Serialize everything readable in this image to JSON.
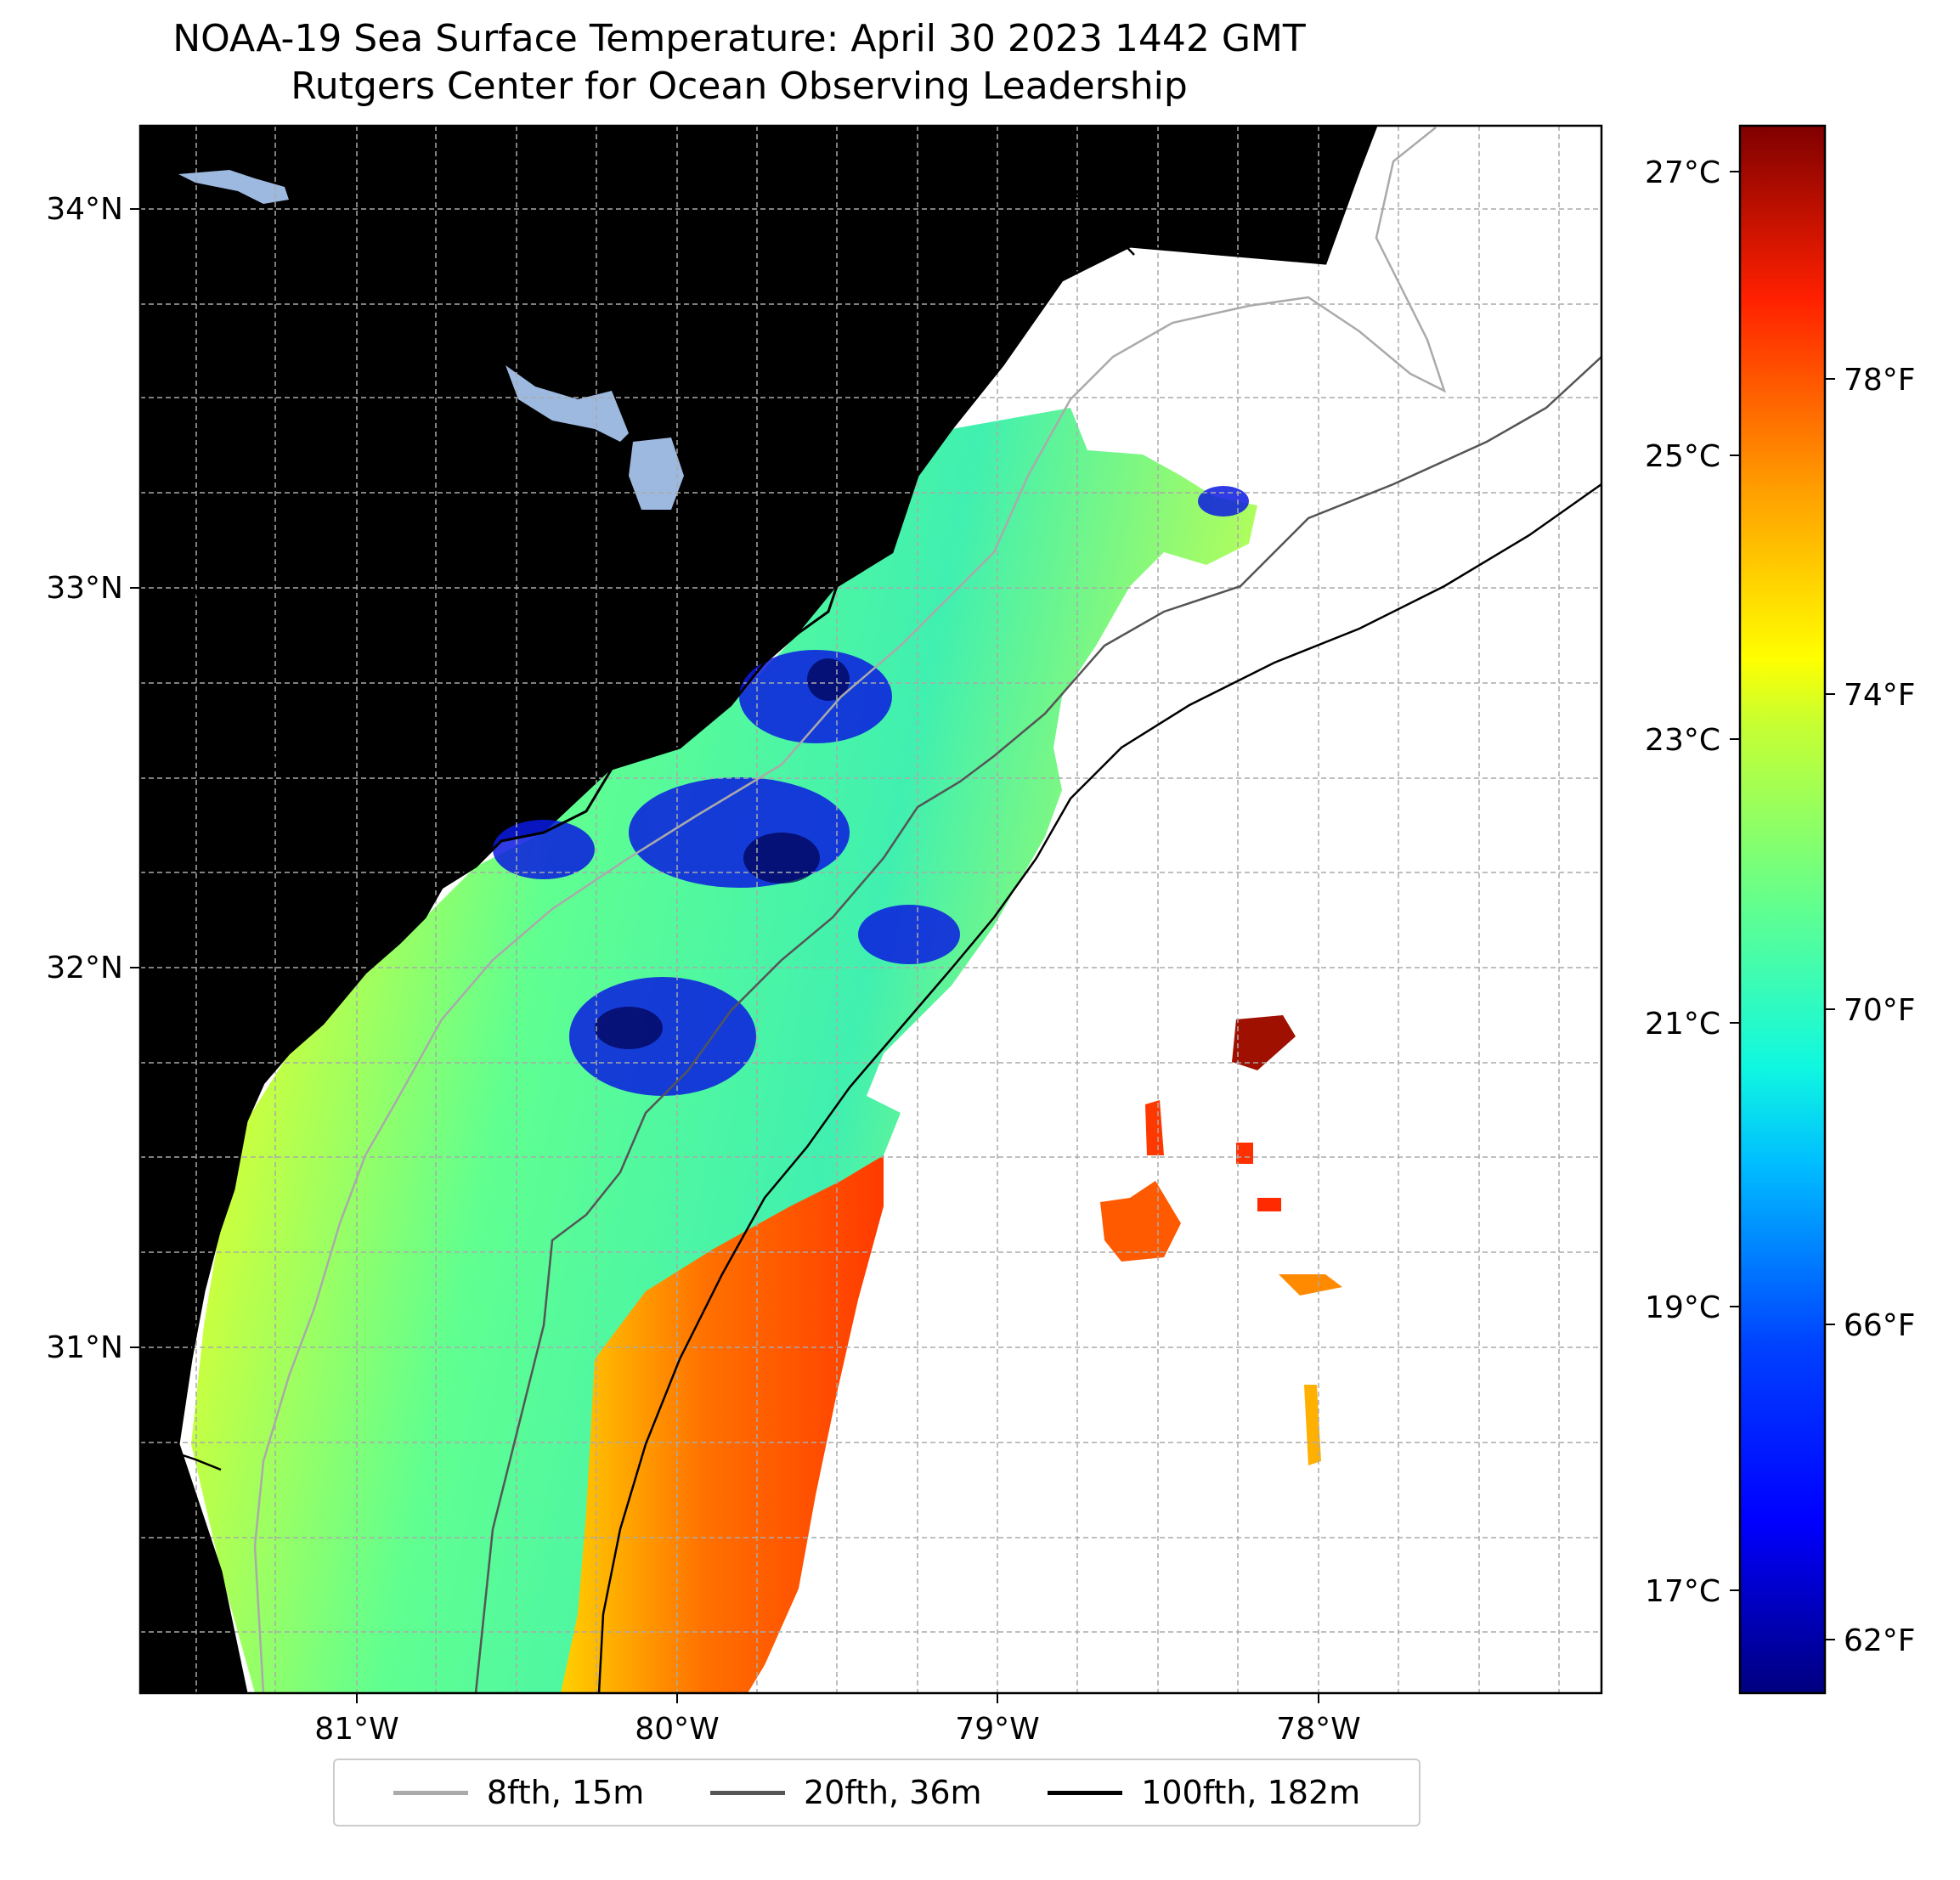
{
  "title": {
    "line1": "NOAA-19 Sea Surface Temperature: April 30 2023 1442 GMT",
    "line2": "Rutgers Center for Ocean Observing Leadership"
  },
  "map": {
    "lat_labels": [
      "34°N",
      "33°N",
      "32°N",
      "31°N"
    ],
    "lon_labels": [
      "81°W",
      "80°W",
      "79°W",
      "78°W"
    ],
    "colors": {
      "land": "#d2b48c",
      "lake": "#9db9e0",
      "grid": "#aaaaaa",
      "coast": "#000000",
      "iso_8fth": "#aaaaaa",
      "iso_20fth": "#555555",
      "iso_100fth": "#000000"
    }
  },
  "colorbar": {
    "celsius_labels": [
      "27°C",
      "25°C",
      "23°C",
      "21°C",
      "19°C",
      "17°C"
    ],
    "fahrenheit_labels": [
      "78°F",
      "74°F",
      "70°F",
      "66°F",
      "62°F"
    ],
    "colormap": "jet"
  },
  "legend": {
    "items": [
      {
        "label": "8fth, 15m",
        "color": "#aaaaaa"
      },
      {
        "label": "20fth, 36m",
        "color": "#555555"
      },
      {
        "label": "100fth, 182m",
        "color": "#000000"
      }
    ]
  }
}
